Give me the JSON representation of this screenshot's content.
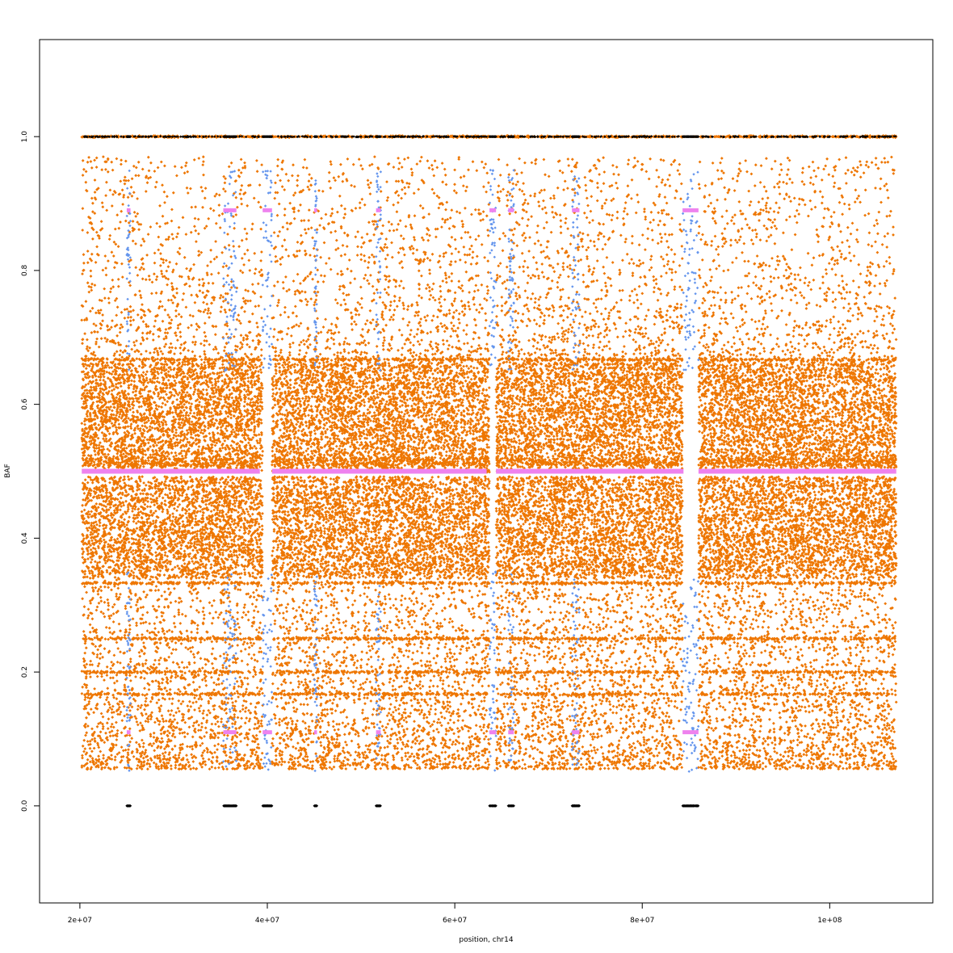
{
  "chart_data": {
    "type": "scatter",
    "xlabel": "position, chr14",
    "ylabel": "BAF",
    "xlim": [
      15700000,
      111000000
    ],
    "ylim": [
      -0.145,
      1.145
    ],
    "xticks": [
      20000000,
      40000000,
      60000000,
      80000000,
      100000000
    ],
    "xtick_labels": [
      "2e+07",
      "4e+07",
      "6e+07",
      "8e+07",
      "1e+08"
    ],
    "yticks": [
      0.0,
      0.2,
      0.4,
      0.6,
      0.8,
      1.0
    ],
    "ytick_labels": [
      "0.0",
      "0.2",
      "0.4",
      "0.6",
      "0.8",
      "1.0"
    ],
    "data_x_range": [
      20200000,
      107100000
    ],
    "gaps_no_heterozygous_snps": [
      [
        39500000,
        40500000
      ],
      [
        63700000,
        64400000
      ],
      [
        84300000,
        86000000
      ]
    ],
    "series": [
      {
        "role": "all-snps",
        "color": "#ee7600",
        "approx_density": "very dense (tens of thousands of points)",
        "dense_band": [
          0.34,
          0.66
        ],
        "horizontal_lines": [
          1.0,
          0.667,
          0.5,
          0.333,
          0.25,
          0.2,
          0.167
        ]
      },
      {
        "role": "snps-in-loh-regions",
        "color": "#6495ed",
        "regions": [
          [
            25000000,
            25400000
          ],
          [
            35300000,
            36700000
          ],
          [
            39500000,
            40500000
          ],
          [
            45000000,
            45300000
          ],
          [
            51600000,
            52100000
          ],
          [
            63700000,
            64400000
          ],
          [
            65700000,
            66300000
          ],
          [
            72500000,
            73300000
          ],
          [
            84300000,
            86000000
          ]
        ]
      },
      {
        "role": "homozygous-calls",
        "color": "#000000",
        "values": [
          0.0,
          1.0
        ]
      },
      {
        "role": "segment-means",
        "color": "#ee82ee",
        "balanced_segments": [
          [
            20200000,
            39200000,
            0.5
          ],
          [
            40500000,
            63400000,
            0.5
          ],
          [
            64400000,
            84400000,
            0.5
          ],
          [
            86000000,
            107100000,
            0.5
          ]
        ],
        "loh_segments": [
          [
            25000000,
            25400000,
            0.89
          ],
          [
            35300000,
            36700000,
            0.89
          ],
          [
            39500000,
            40500000,
            0.89
          ],
          [
            45000000,
            45300000,
            0.89
          ],
          [
            51600000,
            52100000,
            0.89
          ],
          [
            63700000,
            64400000,
            0.89
          ],
          [
            65700000,
            66300000,
            0.89
          ],
          [
            72500000,
            73300000,
            0.89
          ],
          [
            84300000,
            86000000,
            0.89
          ]
        ]
      }
    ]
  }
}
